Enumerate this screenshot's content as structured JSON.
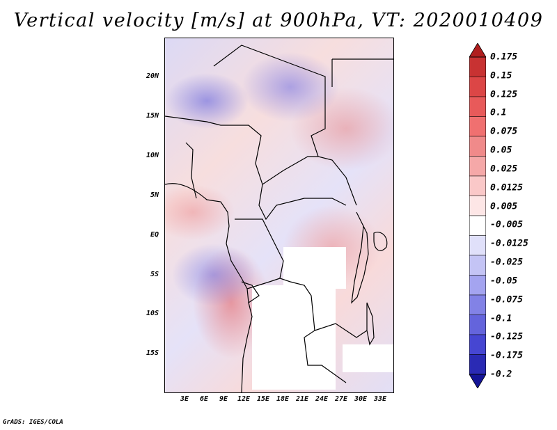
{
  "title": "Vertical velocity [m/s] at 900hPa, VT: 2020010409",
  "credit": "GrADS: IGES/COLA",
  "map": {
    "region": "Central Africa",
    "lat_ticks": [
      "20N",
      "15N",
      "10N",
      "5N",
      "EQ",
      "5S",
      "10S",
      "15S"
    ],
    "lon_ticks": [
      "3E",
      "6E",
      "9E",
      "12E",
      "15E",
      "18E",
      "21E",
      "24E",
      "27E",
      "30E",
      "33E"
    ]
  },
  "colorbar": {
    "levels": [
      "0.175",
      "0.15",
      "0.125",
      "0.1",
      "0.075",
      "0.05",
      "0.025",
      "0.0125",
      "0.005",
      "-0.005",
      "-0.0125",
      "-0.025",
      "-0.05",
      "-0.075",
      "-0.1",
      "-0.125",
      "-0.175",
      "-0.2"
    ],
    "colors": [
      "#b01e1e",
      "#c83232",
      "#dc4646",
      "#e85a5a",
      "#f07070",
      "#f08a8a",
      "#f5a8a8",
      "#fac8c8",
      "#fde6e6",
      "#ffffff",
      "#e0e0fa",
      "#c4c4f5",
      "#a4a4f0",
      "#8282e6",
      "#6464dc",
      "#4646d2",
      "#2a2ab4",
      "#141496"
    ]
  }
}
